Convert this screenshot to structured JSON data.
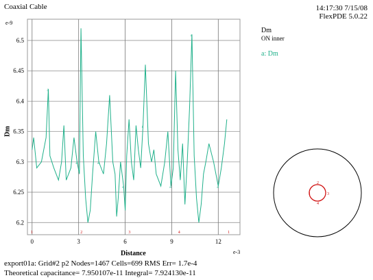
{
  "header": {
    "title": "Coaxial Cable",
    "timestamp": "14:17:30 7/15/08",
    "version": "FlexPDE 5.0.22"
  },
  "legend": {
    "quantity": "Dm",
    "on_label": "ON inner",
    "series_entry": "a: Dm",
    "series_color": "#1fb08a"
  },
  "footer": {
    "line1": "export01a:  Grid#2  p2  Nodes=1467 Cells=699 RMS Err= 1.7e-4",
    "line2": "Theoretical capacitance=  7.950107e-11  Integral=  7.924130e-11"
  },
  "chart_data": {
    "type": "line",
    "title": "",
    "xlabel": "Distance",
    "ylabel": "Dm",
    "x_exponent": "e-3",
    "y_exponent": "e-9",
    "xlim": [
      -0.3,
      13.4
    ],
    "ylim": [
      6.18,
      6.535
    ],
    "x_ticks": [
      0,
      3,
      6,
      9,
      12
    ],
    "x_tick_labels": [
      "0",
      "3",
      "6",
      "9",
      "12"
    ],
    "y_ticks": [
      6.2,
      6.25,
      6.3,
      6.35,
      6.4,
      6.45,
      6.5
    ],
    "y_tick_labels": [
      "6.2",
      "6.25",
      "6.3",
      "6.35",
      "6.4",
      "6.45",
      "6.5"
    ],
    "grid": true,
    "series": [
      {
        "name": "Dm",
        "color": "#1fb08a",
        "x": [
          0.0,
          0.1,
          0.3,
          0.6,
          0.9,
          1.05,
          1.15,
          1.4,
          1.7,
          1.9,
          2.05,
          2.2,
          2.5,
          2.7,
          2.9,
          3.05,
          3.15,
          3.3,
          3.45,
          3.6,
          3.75,
          3.9,
          4.1,
          4.3,
          4.6,
          4.8,
          5.0,
          5.2,
          5.35,
          5.45,
          5.55,
          5.7,
          5.9,
          6.0,
          6.1,
          6.25,
          6.4,
          6.55,
          6.7,
          6.85,
          7.0,
          7.15,
          7.3,
          7.5,
          7.7,
          7.85,
          8.0,
          8.3,
          8.55,
          8.75,
          8.95,
          9.1,
          9.25,
          9.4,
          9.55,
          9.7,
          9.85,
          10.0,
          10.15,
          10.3,
          10.45,
          10.6,
          10.75,
          10.9,
          11.05,
          11.2,
          11.4,
          11.7,
          12.0,
          12.2,
          12.4,
          12.55
        ],
        "y": [
          6.32,
          6.34,
          6.29,
          6.3,
          6.34,
          6.42,
          6.31,
          6.29,
          6.27,
          6.3,
          6.36,
          6.27,
          6.29,
          6.34,
          6.3,
          6.28,
          6.52,
          6.31,
          6.24,
          6.2,
          6.22,
          6.28,
          6.35,
          6.3,
          6.28,
          6.33,
          6.41,
          6.3,
          6.28,
          6.21,
          6.24,
          6.3,
          6.26,
          6.22,
          6.31,
          6.37,
          6.3,
          6.27,
          6.36,
          6.32,
          6.29,
          6.36,
          6.46,
          6.33,
          6.3,
          6.32,
          6.28,
          6.26,
          6.3,
          6.35,
          6.26,
          6.29,
          6.45,
          6.32,
          6.27,
          6.33,
          6.23,
          6.3,
          6.39,
          6.51,
          6.31,
          6.24,
          6.2,
          6.23,
          6.28,
          6.3,
          6.33,
          6.3,
          6.26,
          6.29,
          6.33,
          6.37
        ]
      }
    ]
  },
  "inset": {
    "type": "cross-section",
    "node_labels": [
      "1",
      "2",
      "3",
      "4"
    ]
  }
}
